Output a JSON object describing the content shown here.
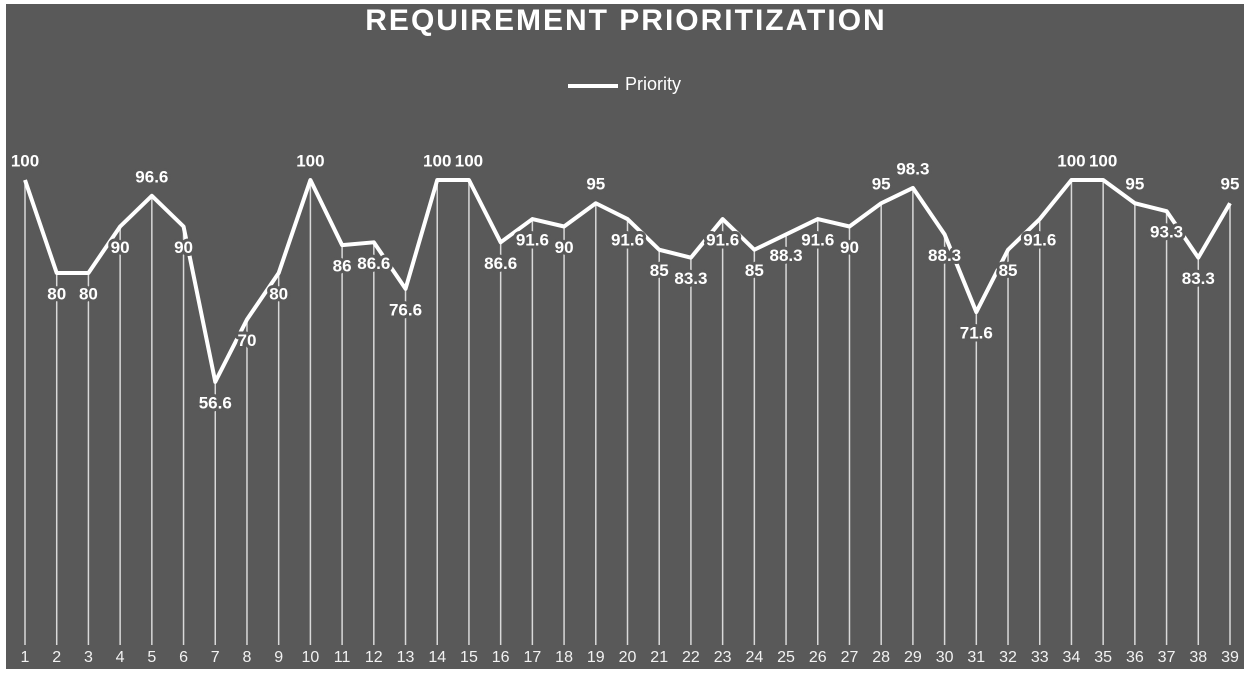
{
  "chart_data": {
    "type": "line",
    "title": "REQUIREMENT PRIORITIZATION",
    "categories": [
      "1",
      "2",
      "3",
      "4",
      "5",
      "6",
      "7",
      "8",
      "9",
      "10",
      "11",
      "12",
      "13",
      "14",
      "15",
      "16",
      "17",
      "18",
      "19",
      "20",
      "21",
      "22",
      "23",
      "24",
      "25",
      "26",
      "27",
      "28",
      "29",
      "30",
      "31",
      "32",
      "33",
      "34",
      "35",
      "36",
      "37",
      "38",
      "39"
    ],
    "series": [
      {
        "name": "Priority",
        "color": "#ffffff",
        "values": [
          100,
          80,
          80,
          90,
          96.6,
          90,
          56.6,
          70,
          80,
          100,
          86,
          86.6,
          76.6,
          100,
          100,
          86.6,
          91.6,
          90,
          95,
          91.6,
          85,
          83.3,
          91.6,
          85,
          88.3,
          91.6,
          90,
          95,
          98.3,
          88.3,
          71.6,
          85,
          91.6,
          100,
          100,
          95,
          93.3,
          83.3,
          95
        ]
      }
    ],
    "ylim": [
      0,
      100
    ],
    "drop_lines": true,
    "legend": "top"
  }
}
